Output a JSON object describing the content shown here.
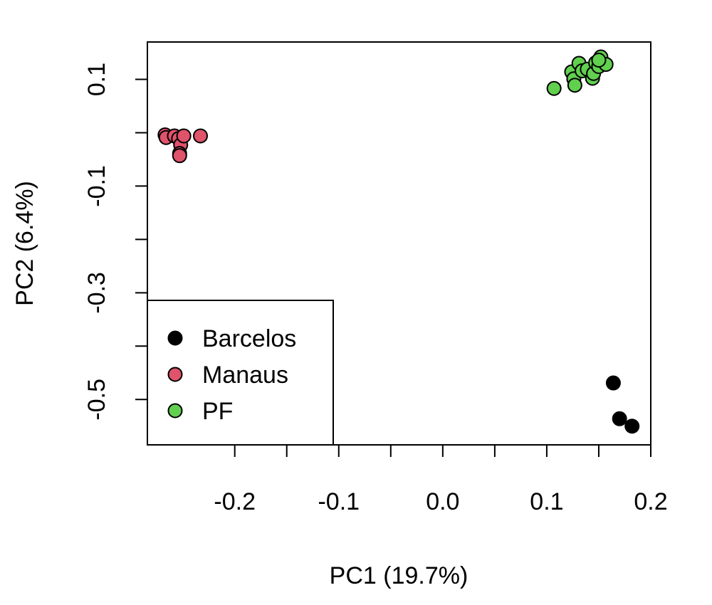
{
  "chart_data": {
    "type": "scatter",
    "xlabel": "PC1 (19.7%)",
    "ylabel": "PC2 (6.4%)",
    "xlim": [
      -0.284,
      0.2
    ],
    "ylim": [
      -0.585,
      0.17
    ],
    "x_ticks": [
      -0.2,
      -0.15,
      -0.1,
      -0.05,
      0.0,
      0.05,
      0.1,
      0.15,
      0.2
    ],
    "x_tick_labels": [
      "-0.2",
      "",
      "-0.1",
      "",
      "0.0",
      "",
      "0.1",
      "",
      "0.2"
    ],
    "y_ticks": [
      0.1,
      0.0,
      -0.1,
      -0.2,
      -0.3,
      -0.4,
      -0.5
    ],
    "y_tick_labels": [
      "0.1",
      "",
      "-0.1",
      "",
      "-0.3",
      "",
      "-0.5"
    ],
    "grid": false,
    "legend_position": "bottom-left",
    "series": [
      {
        "name": "Barcelos",
        "color": "#000000",
        "x": [
          0.164,
          0.17,
          0.182
        ],
        "y": [
          -0.469,
          -0.536,
          -0.55
        ]
      },
      {
        "name": "Manaus",
        "color": "#DF536B",
        "x": [
          -0.267,
          -0.266,
          -0.258,
          -0.254,
          -0.252,
          -0.253,
          -0.253,
          -0.249,
          -0.233
        ],
        "y": [
          -0.004,
          -0.009,
          -0.006,
          -0.011,
          -0.023,
          -0.039,
          -0.043,
          -0.006,
          -0.006
        ]
      },
      {
        "name": "PF",
        "color": "#61D04F",
        "x": [
          0.107,
          0.124,
          0.126,
          0.127,
          0.131,
          0.134,
          0.139,
          0.144,
          0.145,
          0.147,
          0.15,
          0.152,
          0.157,
          0.15
        ],
        "y": [
          0.083,
          0.114,
          0.101,
          0.089,
          0.13,
          0.116,
          0.119,
          0.102,
          0.111,
          0.131,
          0.124,
          0.142,
          0.128,
          0.136
        ]
      }
    ]
  }
}
